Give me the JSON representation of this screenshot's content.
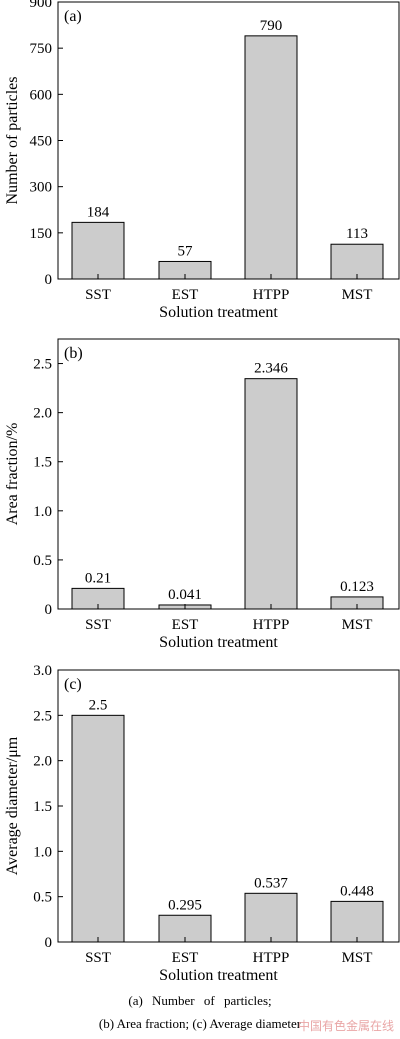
{
  "chart_data": [
    {
      "type": "bar",
      "panel": "(a)",
      "categories": [
        "SST",
        "EST",
        "HTPP",
        "MST"
      ],
      "values": [
        184,
        57,
        790,
        113
      ],
      "value_labels": [
        "184",
        "57",
        "790",
        "113"
      ],
      "ylabel": "Number of particles",
      "xlabel": "Solution treatment",
      "ylim": [
        0,
        900
      ],
      "yticks": [
        0,
        150,
        300,
        450,
        600,
        750,
        900
      ],
      "ytick_labels": [
        "0",
        "150",
        "300",
        "450",
        "600",
        "750",
        "900"
      ],
      "grid": false,
      "bar_color": "#cccccc"
    },
    {
      "type": "bar",
      "panel": "(b)",
      "categories": [
        "SST",
        "EST",
        "HTPP",
        "MST"
      ],
      "values": [
        0.21,
        0.041,
        2.346,
        0.123
      ],
      "value_labels": [
        "0.21",
        "0.041",
        "2.346",
        "0.123"
      ],
      "ylabel": "Area fraction/%",
      "xlabel": "Solution treatment",
      "ylim": [
        0,
        2.75
      ],
      "yticks": [
        0,
        0.5,
        1.0,
        1.5,
        2.0,
        2.5
      ],
      "ytick_labels": [
        "0",
        "0.5",
        "1.0",
        "1.5",
        "2.0",
        "2.5"
      ],
      "grid": false,
      "bar_color": "#cccccc"
    },
    {
      "type": "bar",
      "panel": "(c)",
      "categories": [
        "SST",
        "EST",
        "HTPP",
        "MST"
      ],
      "values": [
        2.5,
        0.295,
        0.537,
        0.448
      ],
      "value_labels": [
        "2.5",
        "0.295",
        "0.537",
        "0.448"
      ],
      "ylabel": "Average diameter/μm",
      "xlabel": "Solution treatment",
      "ylim": [
        0,
        3.0
      ],
      "yticks": [
        0,
        0.5,
        1.0,
        1.5,
        2.0,
        2.5,
        3.0
      ],
      "ytick_labels": [
        "0",
        "0.5",
        "1.0",
        "1.5",
        "2.0",
        "2.5",
        "3.0"
      ],
      "grid": false,
      "bar_color": "#cccccc"
    }
  ],
  "caption": {
    "line1": "(a) Number of particles;",
    "line2": "(b) Area fraction; (c) Average diameter"
  },
  "watermark": "中国有色金属在线"
}
